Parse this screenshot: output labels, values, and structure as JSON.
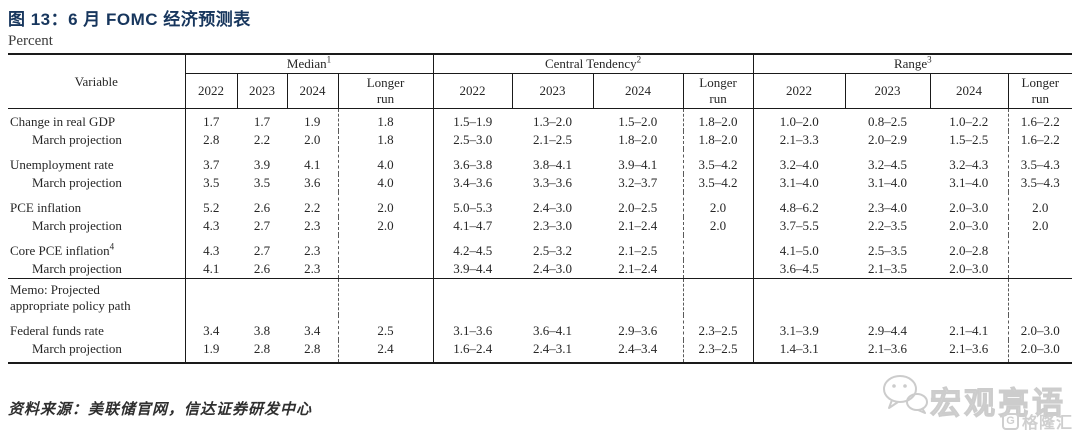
{
  "title": "图 13：6 月 FOMC 经济预测表",
  "subtitle": "Percent",
  "source": "资料来源：美联储官网，信达证券研发中心",
  "watermark": {
    "wechat_icon": "wechat-icon",
    "mp_name": "宏观亮语",
    "brand_logo_letter": "G",
    "brand_name": "格隆汇"
  },
  "colors": {
    "title_navy": "#17365d",
    "table_line": "#1a1a1a",
    "watermark_gray": "#d0d0d0"
  },
  "table": {
    "variable_header": "Variable",
    "groups": [
      {
        "label": "Median",
        "sup": "1",
        "years": [
          "2022",
          "2023",
          "2024",
          "Longer\nrun"
        ]
      },
      {
        "label": "Central Tendency",
        "sup": "2",
        "years": [
          "2022",
          "2023",
          "2024",
          "Longer\nrun"
        ]
      },
      {
        "label": "Range",
        "sup": "3",
        "years": [
          "2022",
          "2023",
          "2024",
          "Longer\nrun"
        ]
      }
    ],
    "rows": [
      {
        "label": "Change in real GDP",
        "sup": "",
        "indent": false,
        "row_class": "first-row",
        "cells": [
          "1.7",
          "1.7",
          "1.9",
          "1.8",
          "1.5–1.9",
          "1.3–2.0",
          "1.5–2.0",
          "1.8–2.0",
          "1.0–2.0",
          "0.8–2.5",
          "1.0–2.2",
          "1.6–2.2"
        ]
      },
      {
        "label": "March projection",
        "sup": "",
        "indent": true,
        "row_class": "",
        "cells": [
          "2.8",
          "2.2",
          "2.0",
          "1.8",
          "2.5–3.0",
          "2.1–2.5",
          "1.8–2.0",
          "1.8–2.0",
          "2.1–3.3",
          "2.0–2.9",
          "1.5–2.5",
          "1.6–2.2"
        ]
      },
      {
        "label": "Unemployment rate",
        "sup": "",
        "indent": false,
        "row_class": "group-start",
        "cells": [
          "3.7",
          "3.9",
          "4.1",
          "4.0",
          "3.6–3.8",
          "3.8–4.1",
          "3.9–4.1",
          "3.5–4.2",
          "3.2–4.0",
          "3.2–4.5",
          "3.2–4.3",
          "3.5–4.3"
        ]
      },
      {
        "label": "March projection",
        "sup": "",
        "indent": true,
        "row_class": "",
        "cells": [
          "3.5",
          "3.5",
          "3.6",
          "4.0",
          "3.4–3.6",
          "3.3–3.6",
          "3.2–3.7",
          "3.5–4.2",
          "3.1–4.0",
          "3.1–4.0",
          "3.1–4.0",
          "3.5–4.3"
        ]
      },
      {
        "label": "PCE inflation",
        "sup": "",
        "indent": false,
        "row_class": "group-start",
        "cells": [
          "5.2",
          "2.6",
          "2.2",
          "2.0",
          "5.0–5.3",
          "2.4–3.0",
          "2.0–2.5",
          "2.0",
          "4.8–6.2",
          "2.3–4.0",
          "2.0–3.0",
          "2.0"
        ]
      },
      {
        "label": "March projection",
        "sup": "",
        "indent": true,
        "row_class": "",
        "cells": [
          "4.3",
          "2.7",
          "2.3",
          "2.0",
          "4.1–4.7",
          "2.3–3.0",
          "2.1–2.4",
          "2.0",
          "3.7–5.5",
          "2.2–3.5",
          "2.0–3.0",
          "2.0"
        ]
      },
      {
        "label": "Core PCE inflation",
        "sup": "4",
        "indent": false,
        "row_class": "group-start",
        "cells": [
          "4.3",
          "2.7",
          "2.3",
          "",
          "4.2–4.5",
          "2.5–3.2",
          "2.1–2.5",
          "",
          "4.1–5.0",
          "2.5–3.5",
          "2.0–2.8",
          ""
        ]
      },
      {
        "label": "March projection",
        "sup": "",
        "indent": true,
        "row_class": "",
        "cells": [
          "4.1",
          "2.6",
          "2.3",
          "",
          "3.9–4.4",
          "2.4–3.0",
          "2.1–2.4",
          "",
          "3.6–4.5",
          "2.1–3.5",
          "2.0–3.0",
          ""
        ]
      },
      {
        "label": "Memo: Projected\nappropriate policy path",
        "sup": "",
        "indent": false,
        "row_class": "separator-top",
        "cells": [
          "",
          "",
          "",
          "",
          "",
          "",
          "",
          "",
          "",
          "",
          "",
          ""
        ]
      },
      {
        "label": "Federal funds rate",
        "sup": "",
        "indent": false,
        "row_class": "group-start",
        "cells": [
          "3.4",
          "3.8",
          "3.4",
          "2.5",
          "3.1–3.6",
          "3.6–4.1",
          "2.9–3.6",
          "2.3–2.5",
          "3.1–3.9",
          "2.9–4.4",
          "2.1–4.1",
          "2.0–3.0"
        ]
      },
      {
        "label": "March projection",
        "sup": "",
        "indent": true,
        "row_class": "last-row",
        "cells": [
          "1.9",
          "2.8",
          "2.8",
          "2.4",
          "1.6–2.4",
          "2.4–3.1",
          "2.4–3.4",
          "2.3–2.5",
          "1.4–3.1",
          "2.1–3.6",
          "2.1–3.6",
          "2.0–3.0"
        ]
      }
    ]
  }
}
